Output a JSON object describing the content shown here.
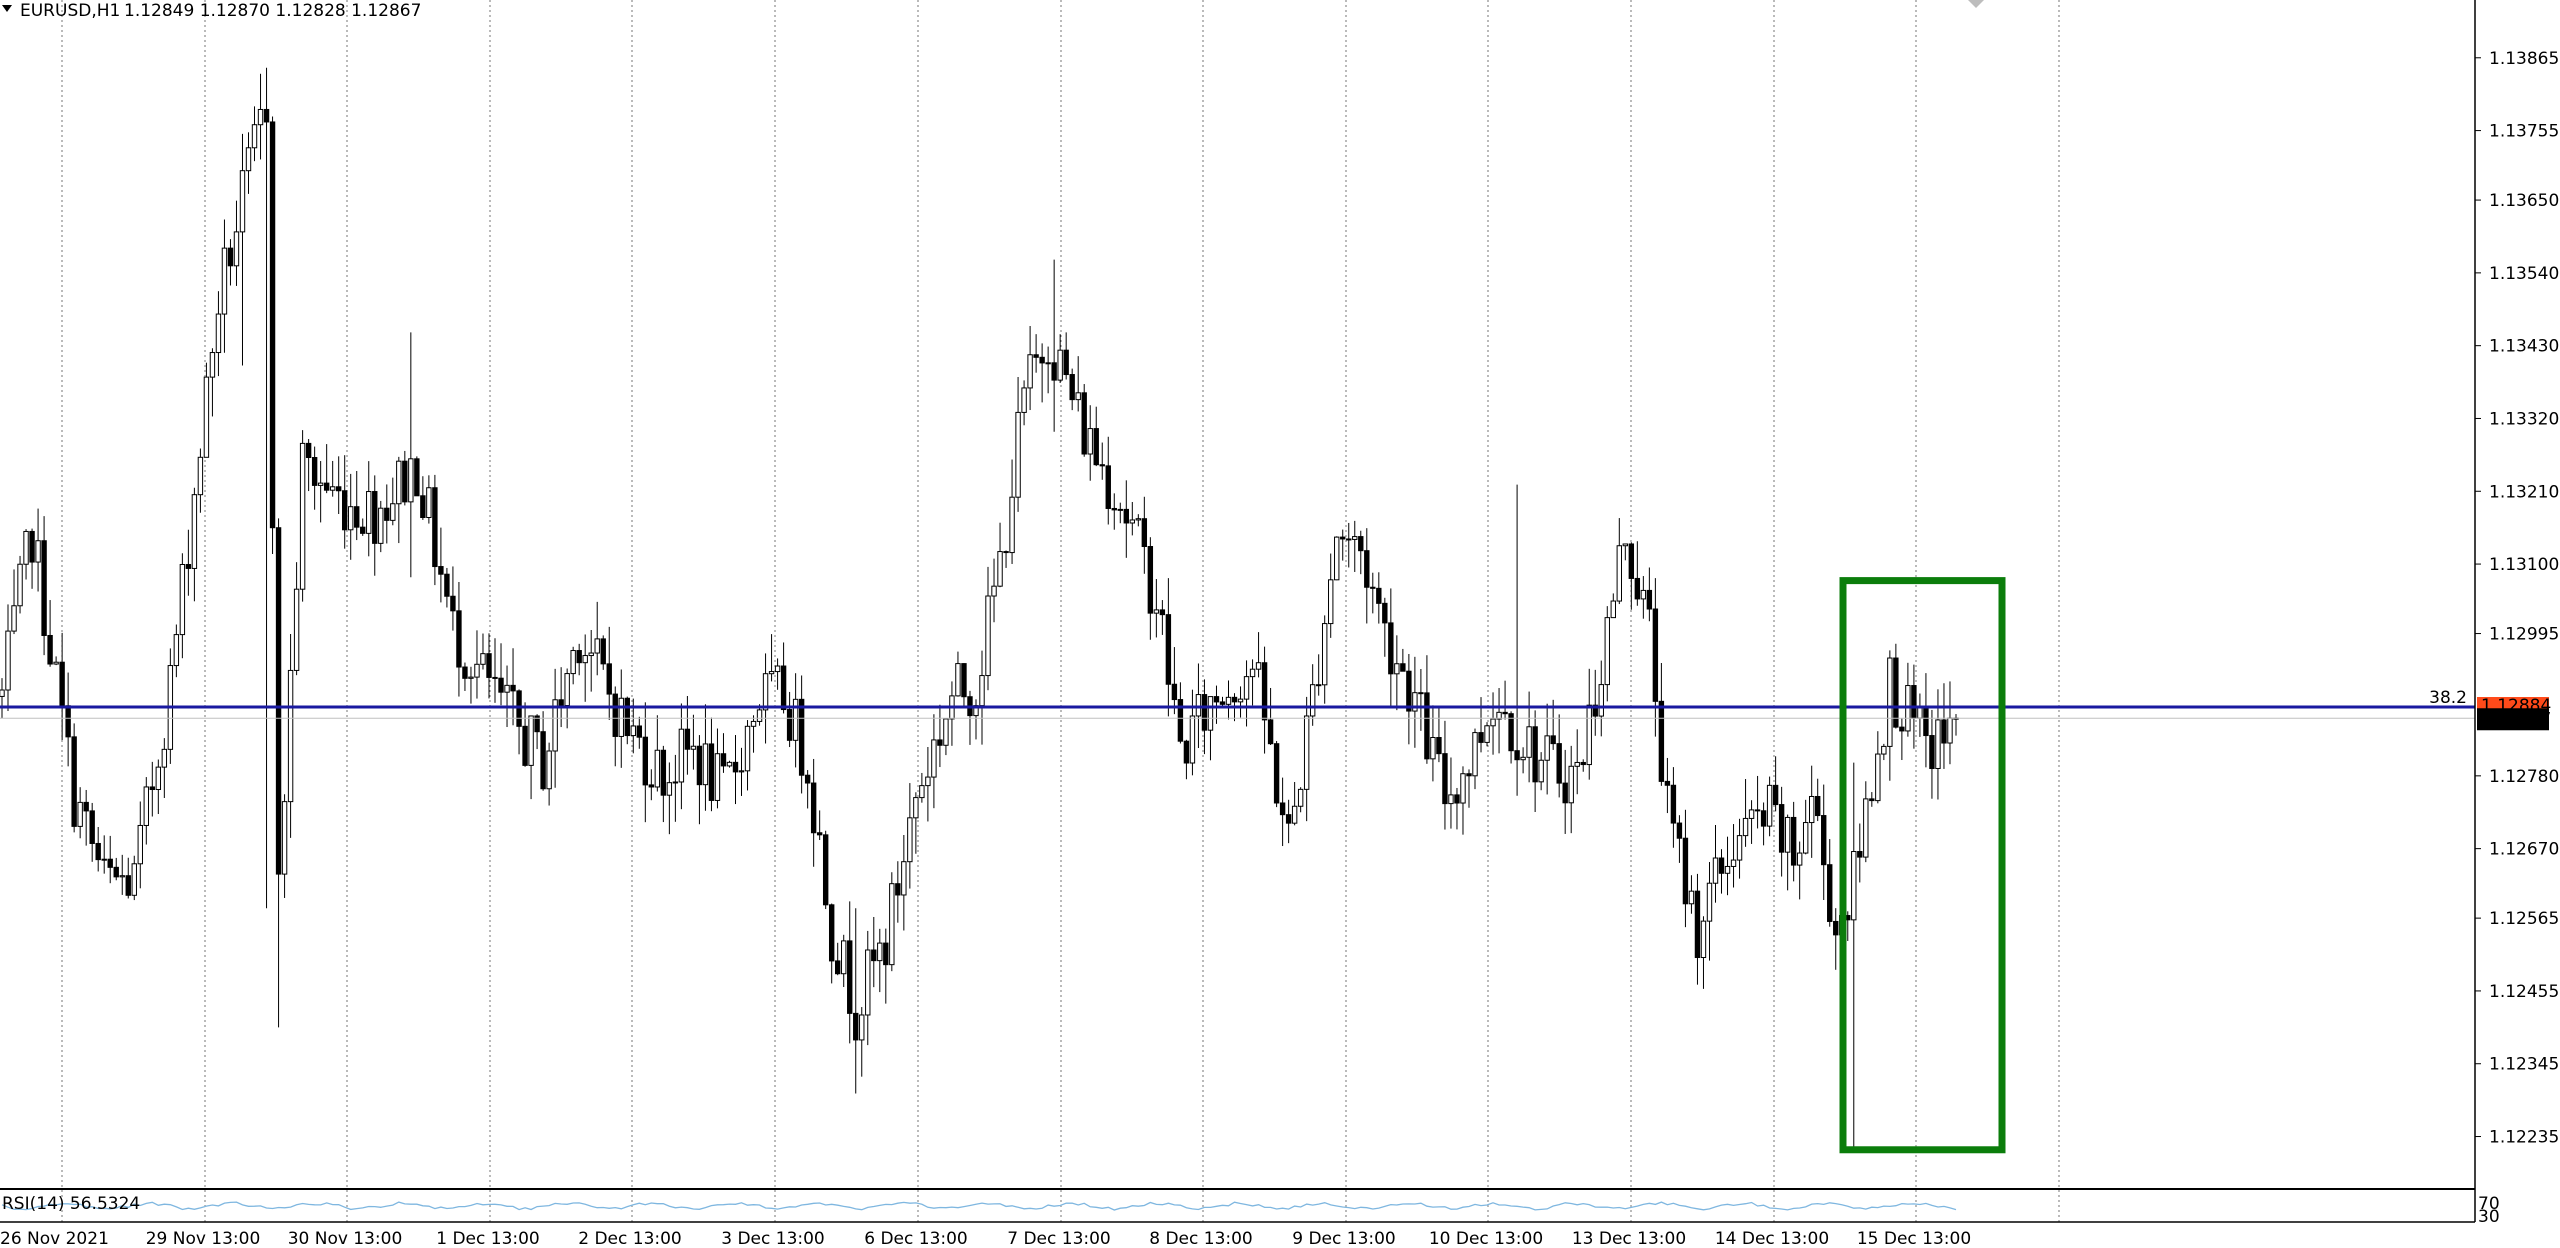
{
  "header": {
    "symbol": "EURUSD,H1",
    "ohlc": "1.12849 1.12870 1.12828 1.12867",
    "collapse_icon": "triangle-down-icon"
  },
  "colors": {
    "candle": "#000000",
    "fib_line": "#1a1aa0",
    "highlight": "#0b7d0b",
    "price_tag": "#000000",
    "fib_tag": "#ff4a1a",
    "rsi_line": "#7fb7e0",
    "grid": "#555555"
  },
  "chart_data": {
    "type": "candlestick",
    "symbol": "EURUSD",
    "timeframe": "H1",
    "y_ticks": [
      "1.13865",
      "1.13755",
      "1.13650",
      "1.13540",
      "1.13430",
      "1.13320",
      "1.13210",
      "1.13100",
      "1.12995",
      "1.12780",
      "1.12670",
      "1.12565",
      "1.12455",
      "1.12345",
      "1.12235"
    ],
    "ylim": [
      1.12195,
      1.1391
    ],
    "x_ticks": [
      "26 Nov 2021",
      "29 Nov 13:00",
      "30 Nov 13:00",
      "1 Dec 13:00",
      "2 Dec 13:00",
      "3 Dec 13:00",
      "6 Dec 13:00",
      "7 Dec 13:00",
      "8 Dec 13:00",
      "9 Dec 13:00",
      "10 Dec 13:00",
      "13 Dec 13:00",
      "14 Dec 13:00",
      "15 Dec 13:00"
    ],
    "price_levels": {
      "fib_label": "38.2",
      "fib_price": 1.12884,
      "fib_price_text": "1.12884",
      "current_price": 1.12867,
      "current_price_text": "1.12867"
    },
    "grid": "vertical dotted",
    "highlight_box": {
      "price_high": 1.13075,
      "price_low": 1.12215,
      "from": "14 Dec ~22:00",
      "to": "16 Dec ~01:00"
    },
    "anchors": [
      {
        "i": 0,
        "p": 1.129
      },
      {
        "i": 5,
        "p": 1.1315
      },
      {
        "i": 12,
        "p": 1.1275
      },
      {
        "i": 17,
        "p": 1.1262
      },
      {
        "i": 22,
        "p": 1.1262
      },
      {
        "i": 28,
        "p": 1.1292
      },
      {
        "i": 36,
        "p": 1.135
      },
      {
        "i": 40,
        "p": 1.1365
      },
      {
        "i": 44,
        "p": 1.138
      },
      {
        "i": 46,
        "p": 1.126
      },
      {
        "i": 50,
        "p": 1.1325
      },
      {
        "i": 56,
        "p": 1.132
      },
      {
        "i": 62,
        "p": 1.1318
      },
      {
        "i": 69,
        "p": 1.1325
      },
      {
        "i": 75,
        "p": 1.13
      },
      {
        "i": 82,
        "p": 1.129
      },
      {
        "i": 90,
        "p": 1.128
      },
      {
        "i": 96,
        "p": 1.13
      },
      {
        "i": 104,
        "p": 1.1285
      },
      {
        "i": 110,
        "p": 1.1278
      },
      {
        "i": 115,
        "p": 1.1282
      },
      {
        "i": 120,
        "p": 1.1275
      },
      {
        "i": 126,
        "p": 1.129
      },
      {
        "i": 130,
        "p": 1.129
      },
      {
        "i": 134,
        "p": 1.128
      },
      {
        "i": 138,
        "p": 1.1255
      },
      {
        "i": 142,
        "p": 1.1243
      },
      {
        "i": 147,
        "p": 1.1253
      },
      {
        "i": 152,
        "p": 1.1275
      },
      {
        "i": 158,
        "p": 1.129
      },
      {
        "i": 162,
        "p": 1.1292
      },
      {
        "i": 166,
        "p": 1.131
      },
      {
        "i": 170,
        "p": 1.1335
      },
      {
        "i": 174,
        "p": 1.1345
      },
      {
        "i": 180,
        "p": 1.133
      },
      {
        "i": 186,
        "p": 1.132
      },
      {
        "i": 192,
        "p": 1.1305
      },
      {
        "i": 196,
        "p": 1.1282
      },
      {
        "i": 202,
        "p": 1.129
      },
      {
        "i": 208,
        "p": 1.1295
      },
      {
        "i": 214,
        "p": 1.1268
      },
      {
        "i": 218,
        "p": 1.129
      },
      {
        "i": 222,
        "p": 1.1315
      },
      {
        "i": 226,
        "p": 1.1312
      },
      {
        "i": 230,
        "p": 1.13
      },
      {
        "i": 234,
        "p": 1.1292
      },
      {
        "i": 240,
        "p": 1.1275
      },
      {
        "i": 244,
        "p": 1.128
      },
      {
        "i": 248,
        "p": 1.129
      },
      {
        "i": 252,
        "p": 1.1285
      },
      {
        "i": 256,
        "p": 1.128
      },
      {
        "i": 262,
        "p": 1.1278
      },
      {
        "i": 266,
        "p": 1.1295
      },
      {
        "i": 270,
        "p": 1.1315
      },
      {
        "i": 274,
        "p": 1.13
      },
      {
        "i": 277,
        "p": 1.1272
      },
      {
        "i": 282,
        "p": 1.1255
      },
      {
        "i": 288,
        "p": 1.1268
      },
      {
        "i": 294,
        "p": 1.1272
      },
      {
        "i": 298,
        "p": 1.1265
      },
      {
        "i": 301,
        "p": 1.1275
      },
      {
        "i": 305,
        "p": 1.1255
      },
      {
        "i": 308,
        "p": 1.1262
      },
      {
        "i": 311,
        "p": 1.1278
      },
      {
        "i": 314,
        "p": 1.1292
      },
      {
        "i": 318,
        "p": 1.1285
      },
      {
        "i": 320,
        "p": 1.1282
      },
      {
        "i": 323,
        "p": 1.1284
      },
      {
        "i": 325,
        "p": 1.12867
      }
    ],
    "spikes": [
      {
        "i": 40,
        "h": 1.1375,
        "l": 1.134
      },
      {
        "i": 44,
        "h": 1.1385,
        "l": 1.1258
      },
      {
        "i": 46,
        "h": 1.1312,
        "l": 1.124
      },
      {
        "i": 68,
        "h": 1.1345,
        "l": 1.1308
      },
      {
        "i": 142,
        "h": 1.1258,
        "l": 1.123
      },
      {
        "i": 175,
        "h": 1.1356,
        "l": 1.133
      },
      {
        "i": 252,
        "h": 1.1322,
        "l": 1.129
      },
      {
        "i": 308,
        "h": 1.128,
        "l": 1.1222
      }
    ],
    "rsi": {
      "label": "RSI(14) 56.5324",
      "value": 56.5324,
      "levels": [
        "70",
        "30"
      ]
    }
  }
}
